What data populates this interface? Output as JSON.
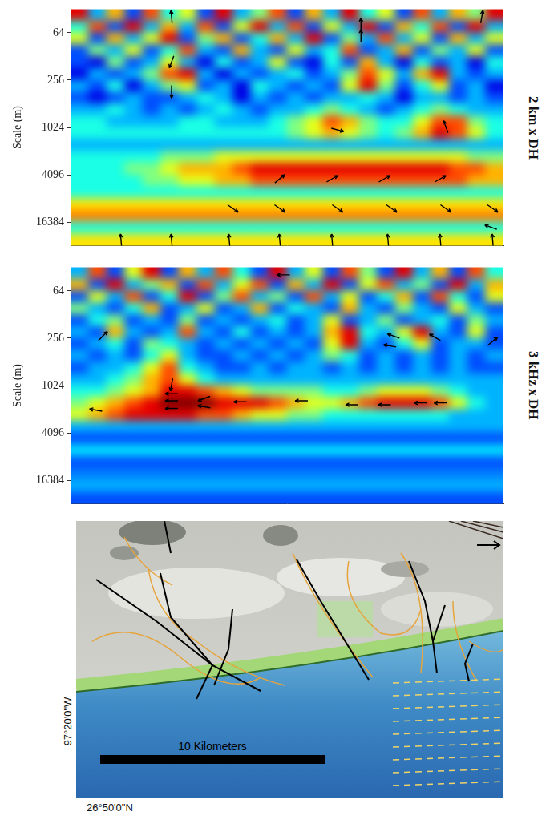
{
  "chart_data": [
    {
      "type": "heatmap",
      "title": "2 km x DH",
      "ylabel": "Scale (m)",
      "log": "y",
      "grid": false,
      "tick_labels": "y",
      "xlim": [
        0,
        24
      ],
      "ylim": [
        32,
        32768
      ],
      "yticks": [
        64,
        256,
        1024,
        4096,
        16384
      ],
      "zlim": [
        0,
        1
      ],
      "x_edges": [
        0,
        1,
        2,
        3,
        4,
        5,
        6,
        7,
        8,
        9,
        10,
        11,
        12,
        13,
        14,
        15,
        16,
        17,
        18,
        19,
        20,
        21,
        22,
        23,
        24
      ],
      "y_edges": [
        32,
        45.25,
        64,
        90.51,
        128,
        181.02,
        256,
        362.04,
        512,
        724.08,
        1024,
        1448.15,
        2048,
        2896.31,
        4096,
        5792.62,
        8192,
        11585.24,
        16384,
        23170.48,
        32768
      ],
      "cells": [
        [
          0.9,
          0.3,
          0.7,
          0.2,
          0.8,
          0.4,
          0.6,
          0.2,
          0.9,
          0.3,
          0.5,
          0.8,
          0.2,
          0.7,
          0.3,
          0.9,
          0.4,
          0.6,
          0.2,
          0.8,
          0.3,
          0.7,
          0.5,
          0.9
        ],
        [
          0.4,
          0.8,
          0.2,
          0.9,
          0.3,
          0.7,
          0.3,
          0.8,
          0.2,
          0.6,
          0.9,
          0.3,
          0.8,
          0.2,
          0.6,
          0.3,
          0.9,
          0.2,
          0.7,
          0.4,
          0.8,
          0.2,
          0.9,
          0.3
        ],
        [
          0.6,
          0.2,
          0.7,
          0.3,
          0.6,
          0.9,
          0.2,
          0.5,
          0.7,
          0.2,
          0.4,
          0.7,
          0.3,
          0.9,
          0.2,
          0.5,
          0.3,
          0.8,
          0.3,
          0.6,
          0.2,
          0.7,
          0.3,
          0.6
        ],
        [
          0.2,
          0.5,
          0.3,
          0.6,
          0.2,
          0.4,
          0.8,
          0.3,
          0.2,
          0.7,
          0.3,
          0.2,
          0.6,
          0.3,
          0.4,
          0.8,
          0.2,
          0.3,
          0.7,
          0.2,
          0.5,
          0.3,
          0.6,
          0.2
        ],
        [
          0.2,
          0.1,
          0.5,
          0.2,
          0.3,
          0.6,
          0.3,
          0.1,
          0.4,
          0.2,
          0.3,
          0.6,
          0.2,
          0.1,
          0.4,
          0.2,
          0.7,
          0.3,
          0.1,
          0.4,
          0.2,
          0.3,
          0.1,
          0.4
        ],
        [
          0.1,
          0.3,
          0.2,
          0.3,
          0.5,
          0.8,
          0.9,
          0.3,
          0.1,
          0.3,
          0.2,
          0.3,
          0.4,
          0.2,
          0.3,
          0.5,
          0.8,
          0.6,
          0.3,
          0.7,
          0.9,
          0.3,
          0.2,
          0.3
        ],
        [
          0.3,
          0.2,
          0.4,
          0.1,
          0.3,
          0.5,
          0.6,
          0.2,
          0.3,
          0.1,
          0.4,
          0.3,
          0.2,
          0.3,
          0.2,
          0.6,
          0.9,
          0.5,
          0.2,
          0.4,
          0.6,
          0.2,
          0.3,
          0.1
        ],
        [
          0.2,
          0.1,
          0.2,
          0.3,
          0.2,
          0.2,
          0.3,
          0.4,
          0.3,
          0.1,
          0.3,
          0.2,
          0.3,
          0.2,
          0.3,
          0.3,
          0.4,
          0.3,
          0.1,
          0.3,
          0.3,
          0.2,
          0.3,
          0.2
        ],
        [
          0.3,
          0.3,
          0.4,
          0.3,
          0.2,
          0.3,
          0.2,
          0.3,
          0.4,
          0.3,
          0.2,
          0.3,
          0.3,
          0.4,
          0.5,
          0.4,
          0.3,
          0.2,
          0.3,
          0.4,
          0.5,
          0.4,
          0.3,
          0.3
        ],
        [
          0.4,
          0.4,
          0.3,
          0.3,
          0.3,
          0.3,
          0.4,
          0.4,
          0.3,
          0.3,
          0.3,
          0.4,
          0.5,
          0.6,
          0.8,
          0.7,
          0.5,
          0.4,
          0.4,
          0.6,
          0.8,
          0.8,
          0.5,
          0.4
        ],
        [
          0.4,
          0.4,
          0.4,
          0.4,
          0.4,
          0.4,
          0.4,
          0.4,
          0.4,
          0.4,
          0.4,
          0.4,
          0.5,
          0.6,
          0.7,
          0.6,
          0.5,
          0.4,
          0.5,
          0.7,
          0.9,
          0.8,
          0.6,
          0.4
        ],
        [
          0.3,
          0.3,
          0.3,
          0.3,
          0.3,
          0.3,
          0.3,
          0.3,
          0.3,
          0.3,
          0.3,
          0.3,
          0.3,
          0.3,
          0.3,
          0.3,
          0.3,
          0.3,
          0.3,
          0.3,
          0.3,
          0.3,
          0.3,
          0.3
        ],
        [
          0.4,
          0.4,
          0.4,
          0.4,
          0.4,
          0.5,
          0.5,
          0.5,
          0.6,
          0.6,
          0.6,
          0.6,
          0.6,
          0.6,
          0.6,
          0.6,
          0.6,
          0.6,
          0.6,
          0.6,
          0.6,
          0.6,
          0.5,
          0.5
        ],
        [
          0.4,
          0.4,
          0.4,
          0.5,
          0.5,
          0.6,
          0.7,
          0.7,
          0.7,
          0.8,
          0.9,
          0.9,
          0.9,
          0.9,
          0.9,
          0.9,
          0.9,
          0.9,
          0.9,
          0.9,
          0.9,
          0.8,
          0.8,
          0.7
        ],
        [
          0.4,
          0.4,
          0.4,
          0.4,
          0.5,
          0.5,
          0.6,
          0.6,
          0.7,
          0.7,
          0.8,
          0.8,
          0.8,
          0.8,
          0.8,
          0.8,
          0.8,
          0.8,
          0.8,
          0.8,
          0.8,
          0.8,
          0.7,
          0.7
        ],
        [
          0.4,
          0.4,
          0.4,
          0.4,
          0.4,
          0.4,
          0.4,
          0.4,
          0.4,
          0.4,
          0.4,
          0.4,
          0.4,
          0.4,
          0.4,
          0.4,
          0.4,
          0.4,
          0.4,
          0.4,
          0.4,
          0.4,
          0.4,
          0.4
        ],
        [
          0.65,
          0.65,
          0.65,
          0.65,
          0.65,
          0.65,
          0.65,
          0.65,
          0.65,
          0.65,
          0.65,
          0.65,
          0.65,
          0.65,
          0.65,
          0.65,
          0.65,
          0.65,
          0.65,
          0.65,
          0.65,
          0.65,
          0.65,
          0.65
        ],
        [
          0.75,
          0.75,
          0.75,
          0.75,
          0.75,
          0.75,
          0.75,
          0.75,
          0.75,
          0.75,
          0.75,
          0.75,
          0.75,
          0.75,
          0.75,
          0.75,
          0.75,
          0.75,
          0.75,
          0.75,
          0.75,
          0.75,
          0.75,
          0.75
        ],
        [
          0.4,
          0.4,
          0.4,
          0.4,
          0.4,
          0.4,
          0.4,
          0.4,
          0.4,
          0.4,
          0.4,
          0.4,
          0.4,
          0.4,
          0.4,
          0.4,
          0.4,
          0.4,
          0.4,
          0.4,
          0.4,
          0.4,
          0.4,
          0.4
        ],
        [
          0.65,
          0.65,
          0.65,
          0.65,
          0.65,
          0.65,
          0.65,
          0.65,
          0.65,
          0.65,
          0.65,
          0.65,
          0.65,
          0.65,
          0.65,
          0.65,
          0.65,
          0.65,
          0.65,
          0.65,
          0.65,
          0.65,
          0.65,
          0.65
        ]
      ],
      "arrows": {
        "x": [
          5.6,
          5.6,
          16.1,
          16.1,
          22.8,
          5.6,
          14.8,
          20.8,
          11.6,
          14.5,
          17.4,
          20.5,
          9.0,
          11.6,
          14.8,
          17.8,
          20.8,
          23.4,
          23.3,
          2.8,
          5.6,
          8.8,
          11.6,
          14.5,
          17.6,
          20.5,
          23.4
        ],
        "scale": [
          40,
          150,
          50,
          70,
          40,
          360,
          1100,
          1000,
          4600,
          4600,
          4600,
          4600,
          11000,
          11000,
          11000,
          11000,
          11000,
          11000,
          19000,
          28000,
          28000,
          28000,
          28000,
          28000,
          28000,
          28000,
          28000
        ],
        "angle": [
          95,
          -110,
          90,
          90,
          80,
          -90,
          -15,
          110,
          40,
          30,
          30,
          30,
          -35,
          -35,
          -35,
          -35,
          -35,
          -35,
          160,
          95,
          95,
          95,
          95,
          95,
          95,
          95,
          95
        ]
      }
    },
    {
      "type": "heatmap",
      "title": "3 kHz x DH",
      "ylabel": "Scale (m)",
      "log": "y",
      "grid": false,
      "tick_labels": "y",
      "xlim": [
        0,
        24
      ],
      "ylim": [
        32,
        32768
      ],
      "yticks": [
        64,
        256,
        1024,
        4096,
        16384
      ],
      "zlim": [
        0,
        1
      ],
      "x_edges": [
        0,
        1,
        2,
        3,
        4,
        5,
        6,
        7,
        8,
        9,
        10,
        11,
        12,
        13,
        14,
        15,
        16,
        17,
        18,
        19,
        20,
        21,
        22,
        23,
        24
      ],
      "y_edges": [
        32,
        45.25,
        64,
        90.51,
        128,
        181.02,
        256,
        362.04,
        512,
        724.08,
        1024,
        1448.15,
        2048,
        2896.31,
        4096,
        5792.62,
        8192,
        11585.24,
        16384,
        23170.48,
        32768
      ],
      "cells": [
        [
          0.3,
          0.8,
          0.2,
          0.6,
          0.9,
          0.2,
          0.7,
          0.3,
          0.8,
          0.4,
          0.2,
          0.9,
          0.3,
          0.6,
          0.2,
          0.8,
          0.5,
          0.2,
          0.9,
          0.3,
          0.7,
          0.2,
          0.8,
          0.4
        ],
        [
          0.7,
          0.2,
          0.9,
          0.3,
          0.5,
          0.7,
          0.2,
          0.8,
          0.3,
          0.6,
          0.8,
          0.2,
          0.7,
          0.3,
          0.9,
          0.2,
          0.6,
          0.8,
          0.3,
          0.5,
          0.2,
          0.9,
          0.3,
          0.7
        ],
        [
          0.2,
          0.6,
          0.3,
          0.8,
          0.2,
          0.4,
          0.9,
          0.2,
          0.5,
          0.8,
          0.3,
          0.5,
          0.2,
          0.8,
          0.3,
          0.6,
          0.2,
          0.4,
          0.7,
          0.2,
          0.8,
          0.4,
          0.2,
          0.6
        ],
        [
          0.5,
          0.3,
          0.2,
          0.4,
          0.7,
          0.2,
          0.3,
          0.6,
          0.2,
          0.3,
          0.7,
          0.2,
          0.4,
          0.3,
          0.2,
          0.7,
          0.3,
          0.2,
          0.5,
          0.3,
          0.2,
          0.6,
          0.3,
          0.2
        ],
        [
          0.2,
          0.4,
          0.5,
          0.2,
          0.3,
          0.2,
          0.5,
          0.2,
          0.3,
          0.2,
          0.3,
          0.4,
          0.2,
          0.3,
          0.6,
          0.2,
          0.3,
          0.5,
          0.2,
          0.3,
          0.4,
          0.2,
          0.5,
          0.3
        ],
        [
          0.3,
          0.2,
          0.7,
          0.3,
          0.2,
          0.3,
          0.8,
          0.3,
          0.2,
          0.4,
          0.2,
          0.3,
          0.2,
          0.3,
          0.7,
          0.9,
          0.4,
          0.3,
          0.6,
          0.9,
          0.3,
          0.2,
          0.6,
          0.2
        ],
        [
          0.2,
          0.3,
          0.4,
          0.2,
          0.5,
          0.4,
          0.3,
          0.2,
          0.3,
          0.2,
          0.3,
          0.2,
          0.3,
          0.2,
          0.6,
          0.9,
          0.3,
          0.2,
          0.4,
          0.6,
          0.2,
          0.3,
          0.3,
          0.2
        ],
        [
          0.3,
          0.2,
          0.3,
          0.2,
          0.4,
          0.6,
          0.3,
          0.2,
          0.2,
          0.3,
          0.2,
          0.3,
          0.2,
          0.3,
          0.5,
          0.4,
          0.2,
          0.3,
          0.2,
          0.3,
          0.2,
          0.3,
          0.2,
          0.3
        ],
        [
          0.2,
          0.3,
          0.3,
          0.4,
          0.6,
          0.8,
          0.4,
          0.3,
          0.2,
          0.2,
          0.3,
          0.2,
          0.3,
          0.3,
          0.2,
          0.3,
          0.2,
          0.3,
          0.2,
          0.3,
          0.2,
          0.3,
          0.2,
          0.2
        ],
        [
          0.3,
          0.3,
          0.4,
          0.5,
          0.7,
          0.8,
          0.6,
          0.4,
          0.3,
          0.3,
          0.3,
          0.3,
          0.3,
          0.3,
          0.3,
          0.3,
          0.3,
          0.3,
          0.3,
          0.3,
          0.3,
          0.3,
          0.3,
          0.3
        ],
        [
          0.4,
          0.4,
          0.5,
          0.6,
          0.7,
          0.9,
          0.9,
          0.8,
          0.7,
          0.6,
          0.5,
          0.5,
          0.5,
          0.5,
          0.4,
          0.4,
          0.5,
          0.6,
          0.6,
          0.6,
          0.5,
          0.4,
          0.3,
          0.3
        ],
        [
          0.5,
          0.6,
          0.7,
          0.8,
          0.9,
          1.0,
          1.0,
          1.0,
          0.9,
          0.9,
          0.9,
          0.8,
          0.7,
          0.6,
          0.6,
          0.7,
          0.8,
          0.9,
          0.9,
          0.9,
          0.8,
          0.6,
          0.4,
          0.3
        ],
        [
          0.6,
          0.7,
          0.8,
          0.9,
          0.9,
          0.9,
          0.9,
          0.8,
          0.8,
          0.7,
          0.6,
          0.6,
          0.5,
          0.5,
          0.4,
          0.4,
          0.4,
          0.4,
          0.4,
          0.4,
          0.4,
          0.3,
          0.3,
          0.3
        ],
        [
          0.3,
          0.3,
          0.3,
          0.3,
          0.3,
          0.3,
          0.3,
          0.3,
          0.3,
          0.3,
          0.3,
          0.3,
          0.3,
          0.3,
          0.3,
          0.3,
          0.3,
          0.3,
          0.3,
          0.3,
          0.3,
          0.3,
          0.3,
          0.3
        ],
        [
          0.2,
          0.2,
          0.2,
          0.2,
          0.2,
          0.2,
          0.2,
          0.2,
          0.2,
          0.2,
          0.2,
          0.2,
          0.2,
          0.2,
          0.2,
          0.2,
          0.2,
          0.2,
          0.2,
          0.2,
          0.2,
          0.2,
          0.2,
          0.2
        ],
        [
          0.35,
          0.35,
          0.35,
          0.35,
          0.35,
          0.35,
          0.35,
          0.35,
          0.35,
          0.35,
          0.35,
          0.35,
          0.35,
          0.35,
          0.35,
          0.35,
          0.35,
          0.35,
          0.35,
          0.35,
          0.35,
          0.35,
          0.35,
          0.35
        ],
        [
          0.2,
          0.2,
          0.2,
          0.2,
          0.2,
          0.2,
          0.2,
          0.2,
          0.2,
          0.2,
          0.2,
          0.2,
          0.2,
          0.2,
          0.2,
          0.2,
          0.2,
          0.2,
          0.2,
          0.2,
          0.2,
          0.2,
          0.2,
          0.2
        ],
        [
          0.25,
          0.25,
          0.25,
          0.25,
          0.25,
          0.25,
          0.25,
          0.25,
          0.25,
          0.25,
          0.25,
          0.25,
          0.25,
          0.25,
          0.25,
          0.25,
          0.25,
          0.25,
          0.25,
          0.25,
          0.25,
          0.25,
          0.25,
          0.25
        ],
        [
          0.3,
          0.3,
          0.3,
          0.3,
          0.3,
          0.3,
          0.3,
          0.3,
          0.3,
          0.3,
          0.3,
          0.3,
          0.3,
          0.3,
          0.3,
          0.3,
          0.3,
          0.3,
          0.3,
          0.3,
          0.3,
          0.3,
          0.3,
          0.3
        ],
        [
          0.2,
          0.2,
          0.2,
          0.2,
          0.2,
          0.2,
          0.2,
          0.2,
          0.2,
          0.2,
          0.2,
          0.2,
          0.2,
          0.2,
          0.2,
          0.2,
          0.2,
          0.2,
          0.2,
          0.2,
          0.2,
          0.2,
          0.2,
          0.2
        ]
      ],
      "arrows": {
        "x": [
          11.8,
          1.8,
          17.9,
          17.7,
          20.2,
          23.4,
          5.6,
          5.6,
          5.6,
          5.6,
          7.4,
          7.4,
          9.4,
          12.8,
          15.6,
          17.4,
          19.4,
          20.5,
          1.4
        ],
        "scale": [
          40,
          240,
          240,
          320,
          250,
          280,
          1000,
          1300,
          1600,
          2000,
          1500,
          1900,
          1650,
          1600,
          1800,
          1800,
          1700,
          1700,
          2100
        ],
        "angle": [
          180,
          45,
          160,
          170,
          150,
          40,
          -100,
          180,
          180,
          180,
          200,
          170,
          180,
          180,
          180,
          180,
          180,
          180,
          170
        ]
      }
    }
  ],
  "map": {
    "scale_bar": "10 Kilometers",
    "longitude": "97°20'0\"W",
    "latitude": "26°50'0\"N"
  }
}
